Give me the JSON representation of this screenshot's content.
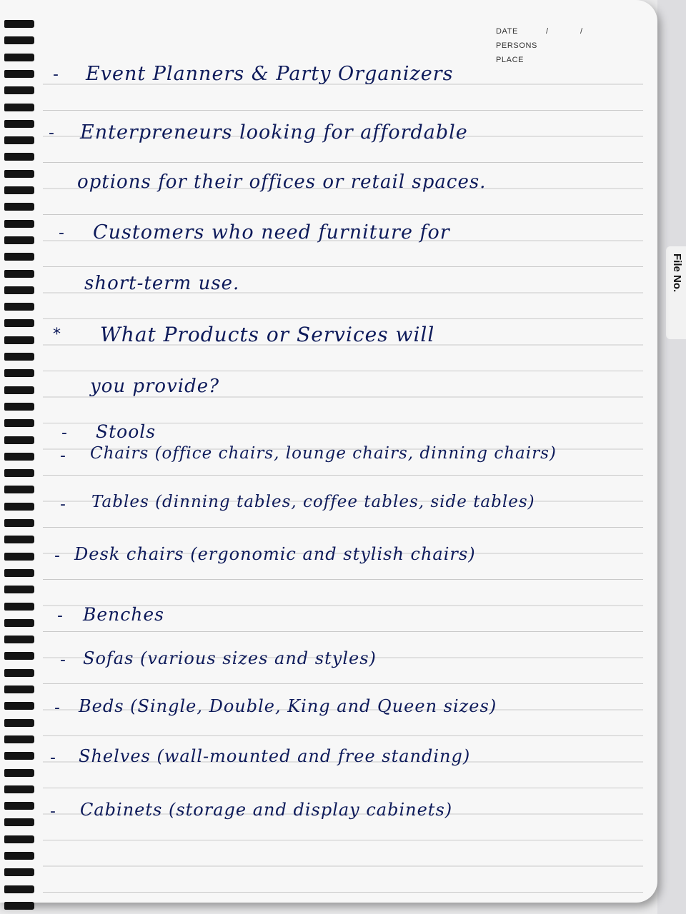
{
  "header": {
    "date_label": "DATE",
    "persons_label": "PERSONS",
    "place_label": "PLACE",
    "date_slash": "/"
  },
  "side_tab": {
    "label": "File No."
  },
  "lines": [
    {
      "bullet": "-",
      "text": "Event Planners & Party Organizers"
    },
    {
      "bullet": "-",
      "text": "Enterpreneurs looking for affordable"
    },
    {
      "bullet": "",
      "text": "options for their offices or retail spaces."
    },
    {
      "bullet": "-",
      "text": "Customers who need furniture for"
    },
    {
      "bullet": "",
      "text": "short-term use."
    },
    {
      "bullet": "*",
      "text": "What Products or Services will"
    },
    {
      "bullet": "",
      "text": "you provide?"
    },
    {
      "bullet": "-",
      "text": "Stools"
    },
    {
      "bullet": "-",
      "text": "Chairs (office chairs, lounge chairs, dinning chairs)"
    },
    {
      "bullet": "-",
      "text": "Tables (dinning tables, coffee tables, side tables)"
    },
    {
      "bullet": "-",
      "text": "Desk chairs (ergonomic and stylish chairs)"
    },
    {
      "bullet": "-",
      "text": "Benches"
    },
    {
      "bullet": "-",
      "text": "Sofas (various sizes and styles)"
    },
    {
      "bullet": "-",
      "text": "Beds (Single, Double, King and Queen sizes)"
    },
    {
      "bullet": "-",
      "text": "Shelves (wall-mounted and free standing)"
    },
    {
      "bullet": "-",
      "text": "Cabinets (storage and display cabinets)"
    }
  ],
  "colors": {
    "ink": "#0d1a5a",
    "paper": "#f7f7f7",
    "rule": "#c9c9c9",
    "spiral": "#141414"
  }
}
